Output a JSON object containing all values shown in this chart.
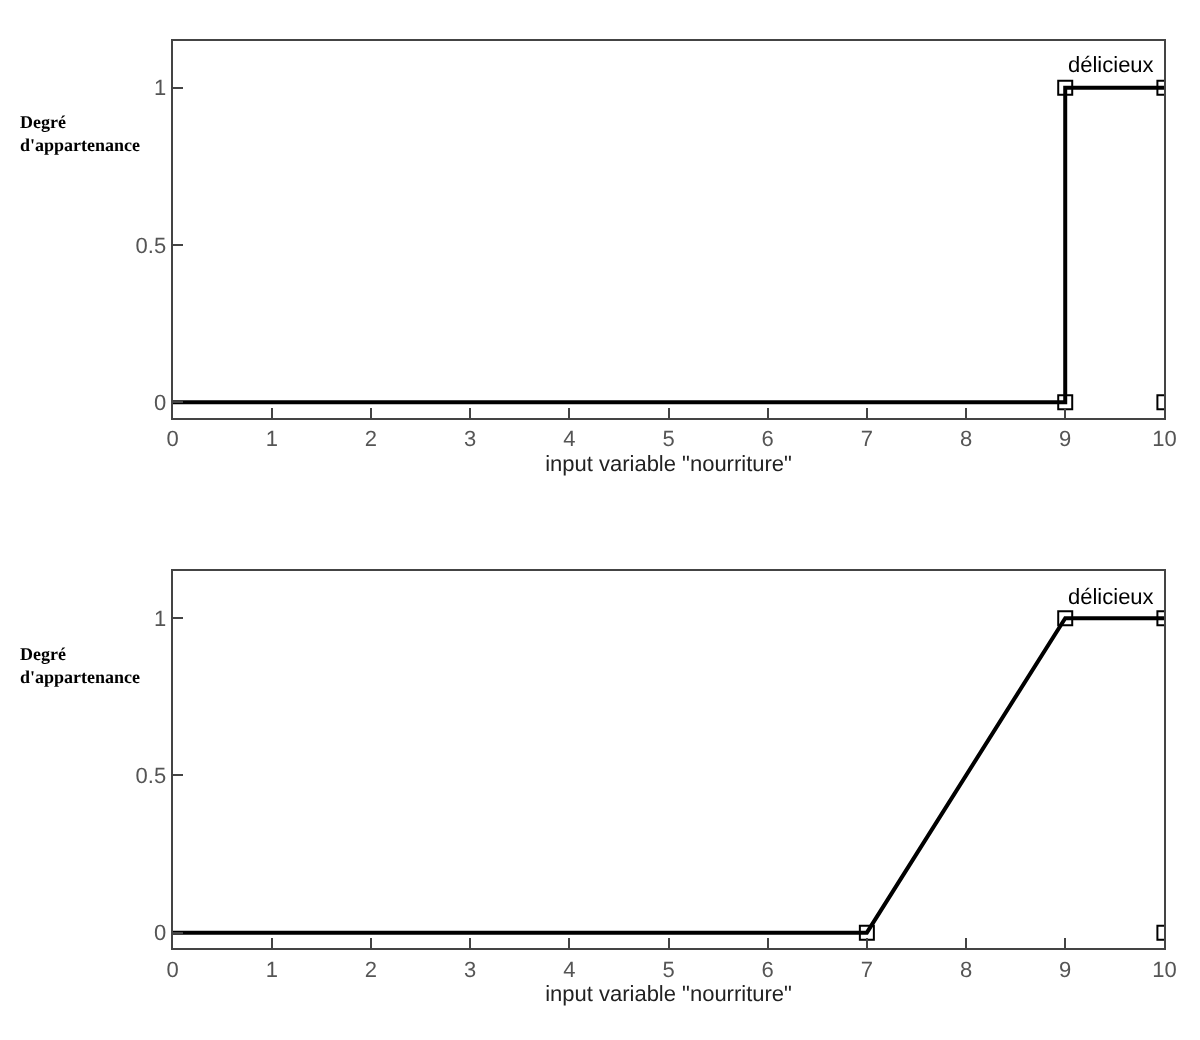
{
  "chart_data": [
    {
      "type": "line",
      "xlabel": "input variable \"nourriture\"",
      "ylabel": "Degré d'appartenance",
      "xlim": [
        0,
        10
      ],
      "ylim": [
        -0.05,
        1.15
      ],
      "xticks": [
        0,
        1,
        2,
        3,
        4,
        5,
        6,
        7,
        8,
        9,
        10
      ],
      "yticks": [
        0,
        0.5,
        1
      ],
      "legend": false,
      "annotations": [
        "délicieux"
      ],
      "series": [
        {
          "color": "#000000",
          "marker": "none",
          "x": [
            0,
            9,
            9,
            10
          ],
          "values": [
            0,
            0,
            1,
            1
          ]
        },
        {
          "type": "scatter",
          "color": "#000000",
          "marker": "square",
          "x": [
            9,
            9,
            10,
            10
          ],
          "values": [
            0,
            1,
            1,
            0
          ]
        }
      ]
    },
    {
      "type": "line",
      "xlabel": "input variable \"nourriture\"",
      "ylabel": "Degré d'appartenance",
      "xlim": [
        0,
        10
      ],
      "ylim": [
        -0.05,
        1.15
      ],
      "xticks": [
        0,
        1,
        2,
        3,
        4,
        5,
        6,
        7,
        8,
        9,
        10
      ],
      "yticks": [
        0,
        0.5,
        1
      ],
      "legend": false,
      "annotations": [
        "délicieux"
      ],
      "series": [
        {
          "color": "#000000",
          "marker": "none",
          "x": [
            0,
            7,
            9,
            10
          ],
          "values": [
            0,
            0,
            1,
            1
          ]
        },
        {
          "type": "scatter",
          "color": "#000000",
          "marker": "square",
          "x": [
            7,
            9,
            10,
            10
          ],
          "values": [
            0,
            1,
            1,
            0
          ]
        }
      ]
    }
  ]
}
